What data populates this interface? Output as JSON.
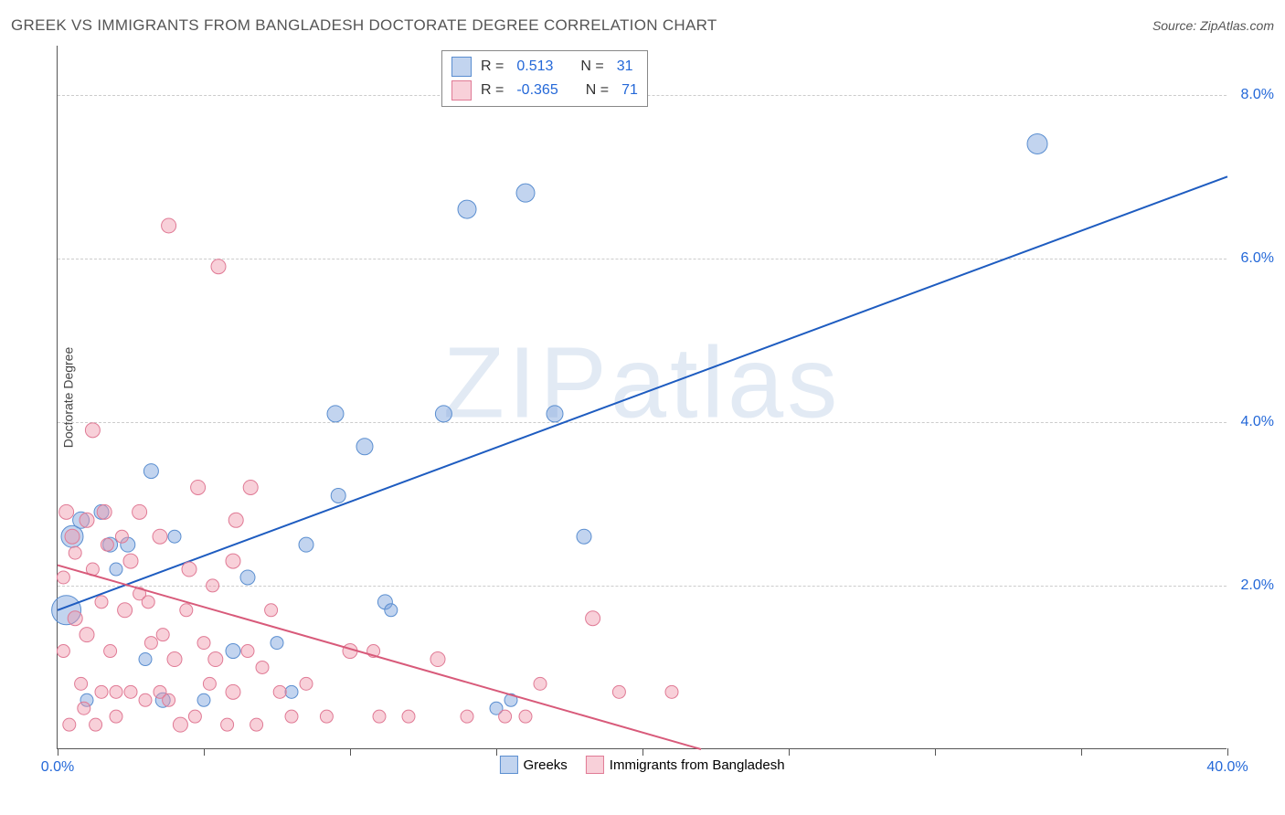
{
  "title": "GREEK VS IMMIGRANTS FROM BANGLADESH DOCTORATE DEGREE CORRELATION CHART",
  "source_label": "Source:",
  "source_name": "ZipAtlas.com",
  "watermark": "ZIPatlas",
  "y_axis_title": "Doctorate Degree",
  "chart": {
    "type": "scatter",
    "x_range": [
      0,
      40
    ],
    "y_range": [
      0,
      8.6
    ],
    "x_ticks": [
      0,
      5,
      10,
      15,
      20,
      25,
      30,
      35,
      40
    ],
    "x_tick_labels": {
      "0": "0.0%",
      "40": "40.0%"
    },
    "y_gridlines": [
      2,
      4,
      6,
      8
    ],
    "y_tick_labels": {
      "2": "2.0%",
      "4": "4.0%",
      "6": "6.0%",
      "8": "8.0%"
    },
    "background_color": "#ffffff",
    "grid_color": "#cccccc",
    "axis_color": "#555555",
    "tick_label_color": "#2468d8",
    "series": [
      {
        "name": "Greeks",
        "label": "Greeks",
        "fill": "rgba(120,160,220,0.45)",
        "stroke": "#5a8ed0",
        "line_color": "#1e5cc0",
        "line_width": 2,
        "legend": {
          "R": "0.513",
          "N": "31"
        },
        "trend": {
          "x1": 0,
          "y1": 1.7,
          "x2": 40,
          "y2": 7.0
        },
        "points": [
          {
            "x": 0.3,
            "y": 1.7,
            "r": 16
          },
          {
            "x": 0.5,
            "y": 2.6,
            "r": 12
          },
          {
            "x": 0.8,
            "y": 2.8,
            "r": 9
          },
          {
            "x": 1.5,
            "y": 2.9,
            "r": 8
          },
          {
            "x": 1.8,
            "y": 2.5,
            "r": 8
          },
          {
            "x": 2.4,
            "y": 2.5,
            "r": 8
          },
          {
            "x": 3.2,
            "y": 3.4,
            "r": 8
          },
          {
            "x": 2.0,
            "y": 2.2,
            "r": 7
          },
          {
            "x": 3.6,
            "y": 0.6,
            "r": 8
          },
          {
            "x": 4.0,
            "y": 2.6,
            "r": 7
          },
          {
            "x": 5.0,
            "y": 0.6,
            "r": 7
          },
          {
            "x": 6.0,
            "y": 1.2,
            "r": 8
          },
          {
            "x": 6.5,
            "y": 2.1,
            "r": 8
          },
          {
            "x": 7.5,
            "y": 1.3,
            "r": 7
          },
          {
            "x": 8.0,
            "y": 0.7,
            "r": 7
          },
          {
            "x": 8.5,
            "y": 2.5,
            "r": 8
          },
          {
            "x": 9.5,
            "y": 4.1,
            "r": 9
          },
          {
            "x": 9.6,
            "y": 3.1,
            "r": 8
          },
          {
            "x": 10.5,
            "y": 3.7,
            "r": 9
          },
          {
            "x": 11.2,
            "y": 1.8,
            "r": 8
          },
          {
            "x": 11.4,
            "y": 1.7,
            "r": 7
          },
          {
            "x": 13.2,
            "y": 4.1,
            "r": 9
          },
          {
            "x": 14.0,
            "y": 6.6,
            "r": 10
          },
          {
            "x": 15.0,
            "y": 0.5,
            "r": 7
          },
          {
            "x": 15.5,
            "y": 0.6,
            "r": 7
          },
          {
            "x": 16.0,
            "y": 6.8,
            "r": 10
          },
          {
            "x": 17.0,
            "y": 4.1,
            "r": 9
          },
          {
            "x": 18.0,
            "y": 2.6,
            "r": 8
          },
          {
            "x": 33.5,
            "y": 7.4,
            "r": 11
          },
          {
            "x": 3.0,
            "y": 1.1,
            "r": 7
          },
          {
            "x": 1.0,
            "y": 0.6,
            "r": 7
          }
        ]
      },
      {
        "name": "Immigrants from Bangladesh",
        "label": "Immigrants from Bangladesh",
        "fill": "rgba(240,150,170,0.45)",
        "stroke": "#e07a95",
        "line_color": "#d85a7a",
        "line_width": 2,
        "legend": {
          "R": "-0.365",
          "N": "71"
        },
        "trend": {
          "x1": 0,
          "y1": 2.25,
          "x2": 22,
          "y2": 0.0
        },
        "points": [
          {
            "x": 0.3,
            "y": 2.9,
            "r": 8
          },
          {
            "x": 0.5,
            "y": 2.6,
            "r": 8
          },
          {
            "x": 0.6,
            "y": 1.6,
            "r": 8
          },
          {
            "x": 0.6,
            "y": 2.4,
            "r": 7
          },
          {
            "x": 0.8,
            "y": 0.8,
            "r": 7
          },
          {
            "x": 1.0,
            "y": 2.8,
            "r": 8
          },
          {
            "x": 1.0,
            "y": 1.4,
            "r": 8
          },
          {
            "x": 1.2,
            "y": 3.9,
            "r": 8
          },
          {
            "x": 1.2,
            "y": 2.2,
            "r": 7
          },
          {
            "x": 1.5,
            "y": 0.7,
            "r": 7
          },
          {
            "x": 1.5,
            "y": 1.8,
            "r": 7
          },
          {
            "x": 1.6,
            "y": 2.9,
            "r": 8
          },
          {
            "x": 1.8,
            "y": 1.2,
            "r": 7
          },
          {
            "x": 2.0,
            "y": 0.4,
            "r": 7
          },
          {
            "x": 2.0,
            "y": 0.7,
            "r": 7
          },
          {
            "x": 2.3,
            "y": 1.7,
            "r": 8
          },
          {
            "x": 2.5,
            "y": 0.7,
            "r": 7
          },
          {
            "x": 2.5,
            "y": 2.3,
            "r": 8
          },
          {
            "x": 2.8,
            "y": 1.9,
            "r": 7
          },
          {
            "x": 2.8,
            "y": 2.9,
            "r": 8
          },
          {
            "x": 3.0,
            "y": 0.6,
            "r": 7
          },
          {
            "x": 3.2,
            "y": 1.3,
            "r": 7
          },
          {
            "x": 3.5,
            "y": 0.7,
            "r": 7
          },
          {
            "x": 3.5,
            "y": 2.6,
            "r": 8
          },
          {
            "x": 3.8,
            "y": 6.4,
            "r": 8
          },
          {
            "x": 3.8,
            "y": 0.6,
            "r": 7
          },
          {
            "x": 4.0,
            "y": 1.1,
            "r": 8
          },
          {
            "x": 4.2,
            "y": 0.3,
            "r": 8
          },
          {
            "x": 4.5,
            "y": 2.2,
            "r": 8
          },
          {
            "x": 4.7,
            "y": 0.4,
            "r": 7
          },
          {
            "x": 4.8,
            "y": 3.2,
            "r": 8
          },
          {
            "x": 5.0,
            "y": 1.3,
            "r": 7
          },
          {
            "x": 5.2,
            "y": 0.8,
            "r": 7
          },
          {
            "x": 5.4,
            "y": 1.1,
            "r": 8
          },
          {
            "x": 5.5,
            "y": 5.9,
            "r": 8
          },
          {
            "x": 5.8,
            "y": 0.3,
            "r": 7
          },
          {
            "x": 6.0,
            "y": 2.3,
            "r": 8
          },
          {
            "x": 6.0,
            "y": 0.7,
            "r": 8
          },
          {
            "x": 6.1,
            "y": 2.8,
            "r": 8
          },
          {
            "x": 6.5,
            "y": 1.2,
            "r": 7
          },
          {
            "x": 6.6,
            "y": 3.2,
            "r": 8
          },
          {
            "x": 6.8,
            "y": 0.3,
            "r": 7
          },
          {
            "x": 7.0,
            "y": 1.0,
            "r": 7
          },
          {
            "x": 7.6,
            "y": 0.7,
            "r": 7
          },
          {
            "x": 8.0,
            "y": 0.4,
            "r": 7
          },
          {
            "x": 8.5,
            "y": 0.8,
            "r": 7
          },
          {
            "x": 9.2,
            "y": 0.4,
            "r": 7
          },
          {
            "x": 10.0,
            "y": 1.2,
            "r": 8
          },
          {
            "x": 10.8,
            "y": 1.2,
            "r": 7
          },
          {
            "x": 11.0,
            "y": 0.4,
            "r": 7
          },
          {
            "x": 12.0,
            "y": 0.4,
            "r": 7
          },
          {
            "x": 13.0,
            "y": 1.1,
            "r": 8
          },
          {
            "x": 14.0,
            "y": 0.4,
            "r": 7
          },
          {
            "x": 15.3,
            "y": 0.4,
            "r": 7
          },
          {
            "x": 16.0,
            "y": 0.4,
            "r": 7
          },
          {
            "x": 16.5,
            "y": 0.8,
            "r": 7
          },
          {
            "x": 18.3,
            "y": 1.6,
            "r": 8
          },
          {
            "x": 19.2,
            "y": 0.7,
            "r": 7
          },
          {
            "x": 21.0,
            "y": 0.7,
            "r": 7
          },
          {
            "x": 0.4,
            "y": 0.3,
            "r": 7
          },
          {
            "x": 0.9,
            "y": 0.5,
            "r": 7
          },
          {
            "x": 1.3,
            "y": 0.3,
            "r": 7
          },
          {
            "x": 1.7,
            "y": 2.5,
            "r": 7
          },
          {
            "x": 2.2,
            "y": 2.6,
            "r": 7
          },
          {
            "x": 3.1,
            "y": 1.8,
            "r": 7
          },
          {
            "x": 3.6,
            "y": 1.4,
            "r": 7
          },
          {
            "x": 4.4,
            "y": 1.7,
            "r": 7
          },
          {
            "x": 5.3,
            "y": 2.0,
            "r": 7
          },
          {
            "x": 0.2,
            "y": 1.2,
            "r": 7
          },
          {
            "x": 0.2,
            "y": 2.1,
            "r": 7
          },
          {
            "x": 7.3,
            "y": 1.7,
            "r": 7
          }
        ]
      }
    ]
  },
  "stats_legend_labels": {
    "R": "R =",
    "N": "N ="
  }
}
